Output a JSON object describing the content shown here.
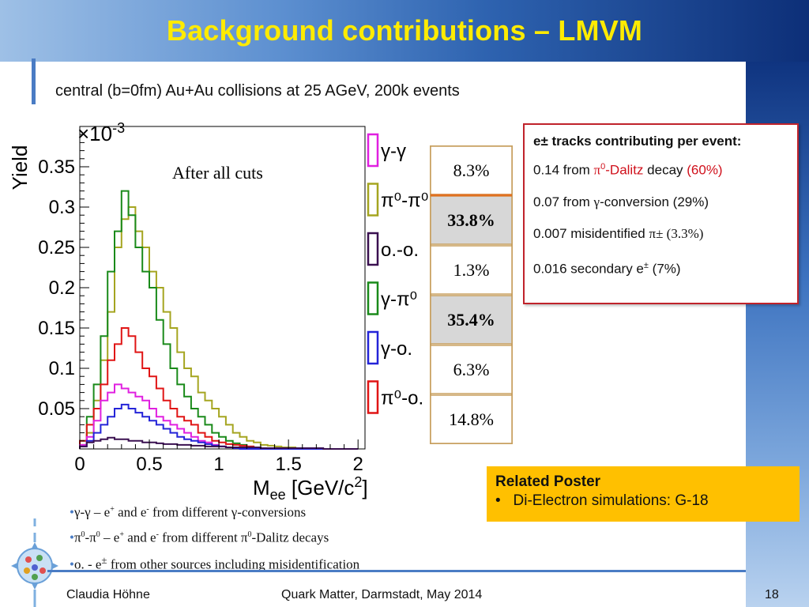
{
  "slide": {
    "title": "Background contributions – LMVM",
    "subtitle": "central (b=0fm) Au+Au collisions at 25 AGeV, 200k events"
  },
  "info_box": {
    "heading": "e± tracks contributing per event:",
    "lines": [
      {
        "pre": "0.14 from ",
        "red1": "π",
        "sup": "0",
        "red2": "-Dalitz",
        "mid": " decay ",
        "red3": "(60%)"
      },
      {
        "pre": "0.07 from ",
        "sym": "γ",
        "post": "-conversion (29%)"
      },
      {
        "pre": "0.007 misidentified ",
        "sym": "π±",
        "post": " (3.3%)"
      },
      {
        "pre": "0.016 secondary e",
        "sup": "±",
        "post": " (7%)"
      }
    ]
  },
  "poster": {
    "heading": "Related Poster",
    "item": "Di-Electron simulations: G-18"
  },
  "notes": [
    {
      "a": "γ-γ – e",
      "s1": "+",
      "b": " and e",
      "s2": "-",
      "c": "  from different γ-conversions"
    },
    {
      "a": "π",
      "s1": "0",
      "b": "-π",
      "s2": "0",
      "c": " – e",
      "s3": "+",
      "d": " and e",
      "s4": "-",
      "e": "  from different π",
      "s5": "0",
      "f": "-Dalitz decays"
    },
    {
      "a": "o. - e",
      "s1": "±",
      "b": " from other sources including misidentification"
    }
  ],
  "footer": {
    "author": "Claudia Höhne",
    "conference": "Quark Matter, Darmstadt, May 2014",
    "page": "18"
  },
  "chart_data": {
    "type": "line",
    "title": "",
    "annotation": "After all cuts",
    "xlabel_main": "M",
    "xlabel_sub": "ee",
    "xlabel_rest": " [GeV/c",
    "xlabel_sup": "2",
    "xlabel_end": "]",
    "ylabel": "Yield",
    "exponent_label": "×10",
    "exponent_sup": "-3",
    "xlim": [
      0,
      2.05
    ],
    "ylim": [
      0,
      0.4
    ],
    "x_ticks": [
      0,
      0.5,
      1,
      1.5,
      2
    ],
    "x_tick_labels": [
      "0",
      "0.5",
      "1",
      "1.5",
      "2"
    ],
    "y_ticks": [
      0.05,
      0.1,
      0.15,
      0.2,
      0.25,
      0.3,
      0.35
    ],
    "y_tick_labels": [
      "0.05",
      "0.1",
      "0.15",
      "0.2",
      "0.25",
      "0.3",
      "0.35"
    ],
    "bin_width": 0.05,
    "series": [
      {
        "name": "π⁰-π⁰",
        "color": "#a5a520",
        "values": [
          0.005,
          0.02,
          0.06,
          0.11,
          0.17,
          0.25,
          0.285,
          0.3,
          0.27,
          0.25,
          0.22,
          0.2,
          0.17,
          0.15,
          0.12,
          0.1,
          0.09,
          0.07,
          0.06,
          0.05,
          0.04,
          0.03,
          0.02,
          0.015,
          0.01,
          0.008,
          0.005,
          0.004,
          0.003,
          0.002,
          0.002,
          0.001,
          0.001,
          0,
          0,
          0,
          0,
          0,
          0,
          0
        ]
      },
      {
        "name": "γ-π⁰",
        "color": "#1a8a1a",
        "values": [
          0.01,
          0.04,
          0.08,
          0.14,
          0.22,
          0.27,
          0.32,
          0.29,
          0.25,
          0.22,
          0.2,
          0.16,
          0.13,
          0.1,
          0.08,
          0.065,
          0.05,
          0.04,
          0.03,
          0.02,
          0.015,
          0.01,
          0.007,
          0.005,
          0.003,
          0.002,
          0.001,
          0,
          0,
          0,
          0,
          0,
          0,
          0,
          0,
          0,
          0,
          0,
          0,
          0
        ]
      },
      {
        "name": "π⁰-o.",
        "color": "#e01515",
        "values": [
          0.01,
          0.03,
          0.05,
          0.08,
          0.11,
          0.13,
          0.15,
          0.14,
          0.12,
          0.1,
          0.09,
          0.075,
          0.06,
          0.05,
          0.04,
          0.035,
          0.03,
          0.02,
          0.015,
          0.01,
          0.008,
          0.006,
          0.005,
          0.004,
          0.003,
          0.002,
          0.001,
          0,
          0,
          0,
          0,
          0,
          0,
          0,
          0,
          0,
          0,
          0,
          0,
          0
        ]
      },
      {
        "name": "γ-γ",
        "color": "#e020e0",
        "values": [
          0.005,
          0.015,
          0.035,
          0.06,
          0.07,
          0.08,
          0.075,
          0.07,
          0.065,
          0.06,
          0.05,
          0.04,
          0.035,
          0.03,
          0.025,
          0.02,
          0.015,
          0.01,
          0.008,
          0.005,
          0.003,
          0.002,
          0.001,
          0,
          0,
          0,
          0,
          0,
          0,
          0,
          0,
          0,
          0,
          0,
          0,
          0,
          0,
          0,
          0,
          0
        ]
      },
      {
        "name": "γ-o.",
        "color": "#2424d8",
        "values": [
          0.003,
          0.01,
          0.02,
          0.03,
          0.04,
          0.05,
          0.055,
          0.05,
          0.045,
          0.04,
          0.035,
          0.03,
          0.025,
          0.02,
          0.015,
          0.012,
          0.01,
          0.008,
          0.006,
          0.004,
          0.003,
          0.002,
          0.001,
          0,
          0,
          0,
          0,
          0,
          0,
          0,
          0,
          0,
          0,
          0,
          0,
          0,
          0,
          0,
          0,
          0
        ]
      },
      {
        "name": "o.-o.",
        "color": "#3a1050",
        "values": [
          0.003,
          0.008,
          0.01,
          0.012,
          0.014,
          0.012,
          0.012,
          0.01,
          0.01,
          0.008,
          0.008,
          0.007,
          0.006,
          0.006,
          0.005,
          0.005,
          0.004,
          0.004,
          0.003,
          0.003,
          0.003,
          0.002,
          0.002,
          0.002,
          0.002,
          0.002,
          0.001,
          0.001,
          0.001,
          0.001,
          0.001,
          0.001,
          0.001,
          0.001,
          0.001,
          0,
          0,
          0,
          0,
          0
        ]
      }
    ],
    "legend": [
      {
        "label": "γ-γ",
        "color": "#e020e0"
      },
      {
        "label": "π⁰-π⁰",
        "color": "#a5a520"
      },
      {
        "label": "o.-o.",
        "color": "#3a1050"
      },
      {
        "label": "γ-π⁰",
        "color": "#1a8a1a"
      },
      {
        "label": "γ-o.",
        "color": "#2424d8"
      },
      {
        "label": "π⁰-o.",
        "color": "#e01515"
      }
    ],
    "percentages": [
      {
        "label": "8.3%",
        "bold": false
      },
      {
        "label": "33.8%",
        "bold": true
      },
      {
        "label": "1.3%",
        "bold": false
      },
      {
        "label": "35.4%",
        "bold": true
      },
      {
        "label": "6.3%",
        "bold": false
      },
      {
        "label": "14.8%",
        "bold": false
      }
    ]
  }
}
